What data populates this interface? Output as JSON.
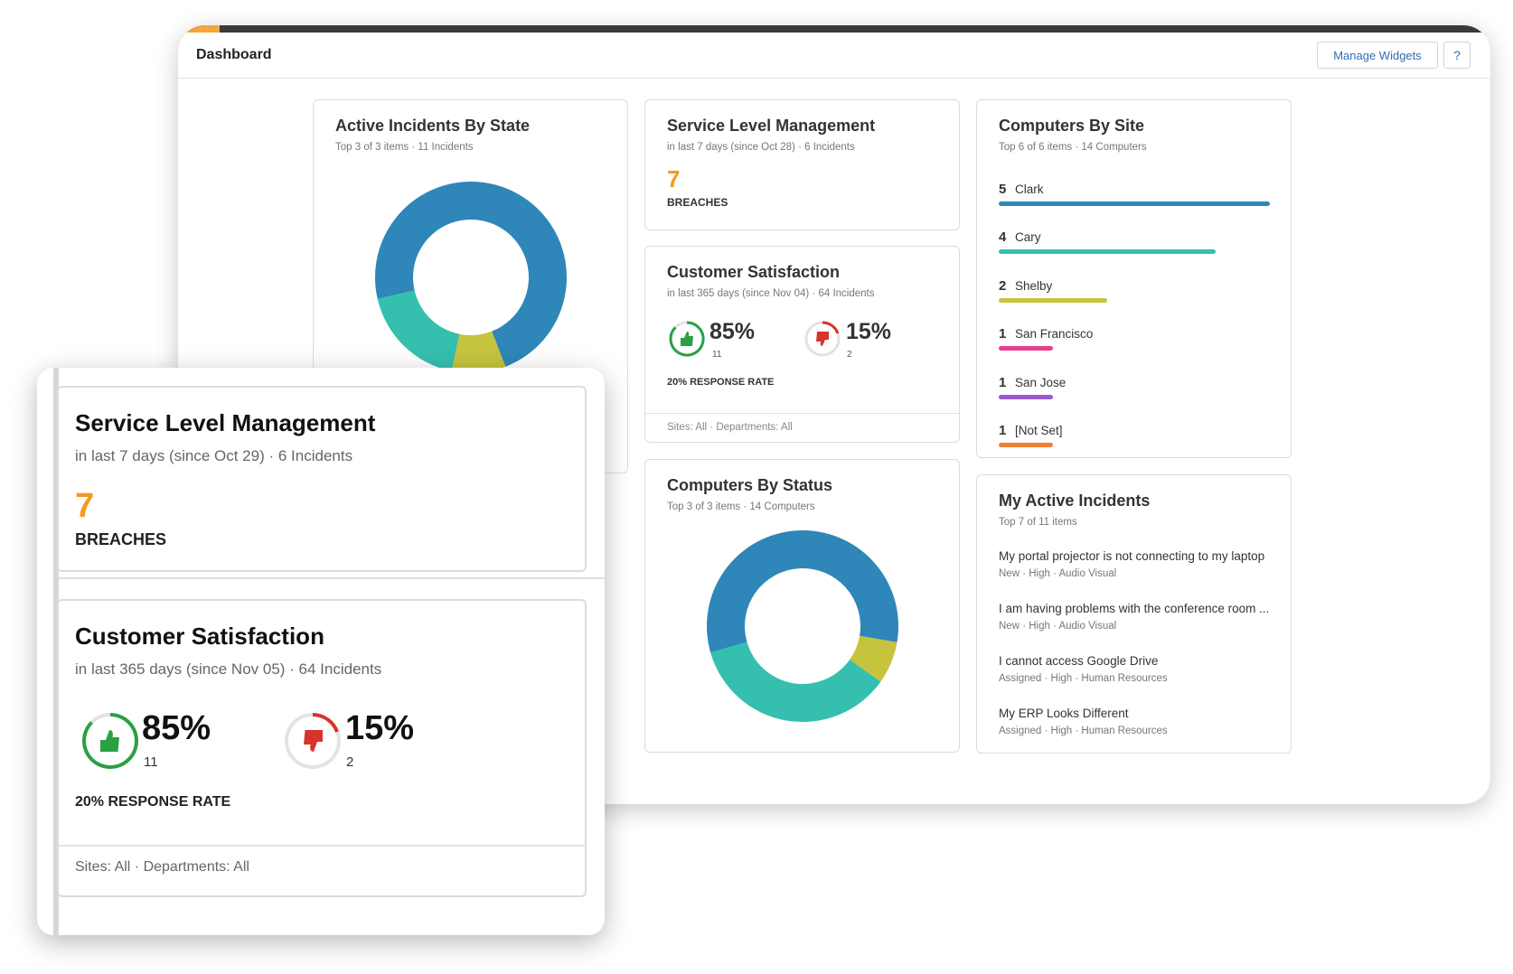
{
  "header": {
    "title": "Dashboard",
    "manage_widgets": "Manage Widgets",
    "help": "?"
  },
  "active_incidents_by_state": {
    "title": "Active Incidents By State",
    "subtitle": "Top 3 of 3 items  ·  11 Incidents"
  },
  "slm_back": {
    "title": "Service Level Management",
    "subtitle": "in last 7 days (since Oct 28)  ·  6 Incidents",
    "value": "7",
    "label": "BREACHES"
  },
  "cs_back": {
    "title": "Customer Satisfaction",
    "subtitle": "in last 365 days (since Nov 04)  ·  64 Incidents",
    "pos_pct": "85%",
    "pos_count": "11",
    "neg_pct": "15%",
    "neg_count": "2",
    "response_rate": "20% RESPONSE RATE",
    "footer": "Sites: All  ·  Departments: All"
  },
  "computers_by_status": {
    "title": "Computers By Status",
    "subtitle": "Top 3 of 3 items  ·  14 Computers"
  },
  "computers_by_site": {
    "title": "Computers By Site",
    "subtitle": "Top 6 of 6 items  ·  14 Computers",
    "items": [
      {
        "count": "5",
        "name": "Clark",
        "value": 5,
        "color": "#2f86b8"
      },
      {
        "count": "4",
        "name": "Cary",
        "value": 4,
        "color": "#35bfae"
      },
      {
        "count": "2",
        "name": "Shelby",
        "value": 2,
        "color": "#c6c33c"
      },
      {
        "count": "1",
        "name": "San Francisco",
        "value": 1,
        "color": "#e8408e"
      },
      {
        "count": "1",
        "name": "San Jose",
        "value": 1,
        "color": "#9b59d0"
      },
      {
        "count": "1",
        "name": "[Not Set]",
        "value": 1,
        "color": "#f07f33"
      }
    ]
  },
  "my_active_incidents": {
    "title": "My Active Incidents",
    "subtitle": "Top 7 of 11 items",
    "items": [
      {
        "title": "My portal projector is not connecting to my laptop",
        "meta": "New  ·  High  ·  Audio Visual"
      },
      {
        "title": "I am having problems with the conference room ...",
        "meta": "New  ·  High  ·  Audio Visual"
      },
      {
        "title": "I cannot access Google Drive",
        "meta": "Assigned  ·  High  ·  Human Resources"
      },
      {
        "title": "My ERP Looks Different",
        "meta": "Assigned  ·  High  ·  Human Resources"
      }
    ]
  },
  "slm_front": {
    "title": "Service Level Management",
    "subtitle": "in last 7 days (since Oct 29)  ·  6 Incidents",
    "value": "7",
    "label": "BREACHES"
  },
  "cs_front": {
    "title": "Customer Satisfaction",
    "subtitle": "in last 365 days (since Nov 05)  ·  64 Incidents",
    "pos_pct": "85%",
    "pos_count": "11",
    "neg_pct": "15%",
    "neg_count": "2",
    "response_rate": "20% RESPONSE RATE",
    "footer": "Sites: All  ·  Departments: All"
  },
  "chart_data": [
    {
      "type": "pie",
      "chart": "Active Incidents By State",
      "series": [
        {
          "values": [
            8,
            1,
            2
          ],
          "colors": [
            "#2f86b8",
            "#c6c33c",
            "#35bfae"
          ]
        }
      ]
    },
    {
      "type": "pie",
      "chart": "Computers By Status",
      "series": [
        {
          "values": [
            8,
            1,
            5
          ],
          "colors": [
            "#2f86b8",
            "#c6c33c",
            "#35bfae"
          ]
        }
      ]
    },
    {
      "type": "bar",
      "chart": "Computers By Site",
      "categories": [
        "Clark",
        "Cary",
        "Shelby",
        "San Francisco",
        "San Jose",
        "[Not Set]"
      ],
      "values": [
        5,
        4,
        2,
        1,
        1,
        1
      ]
    }
  ]
}
